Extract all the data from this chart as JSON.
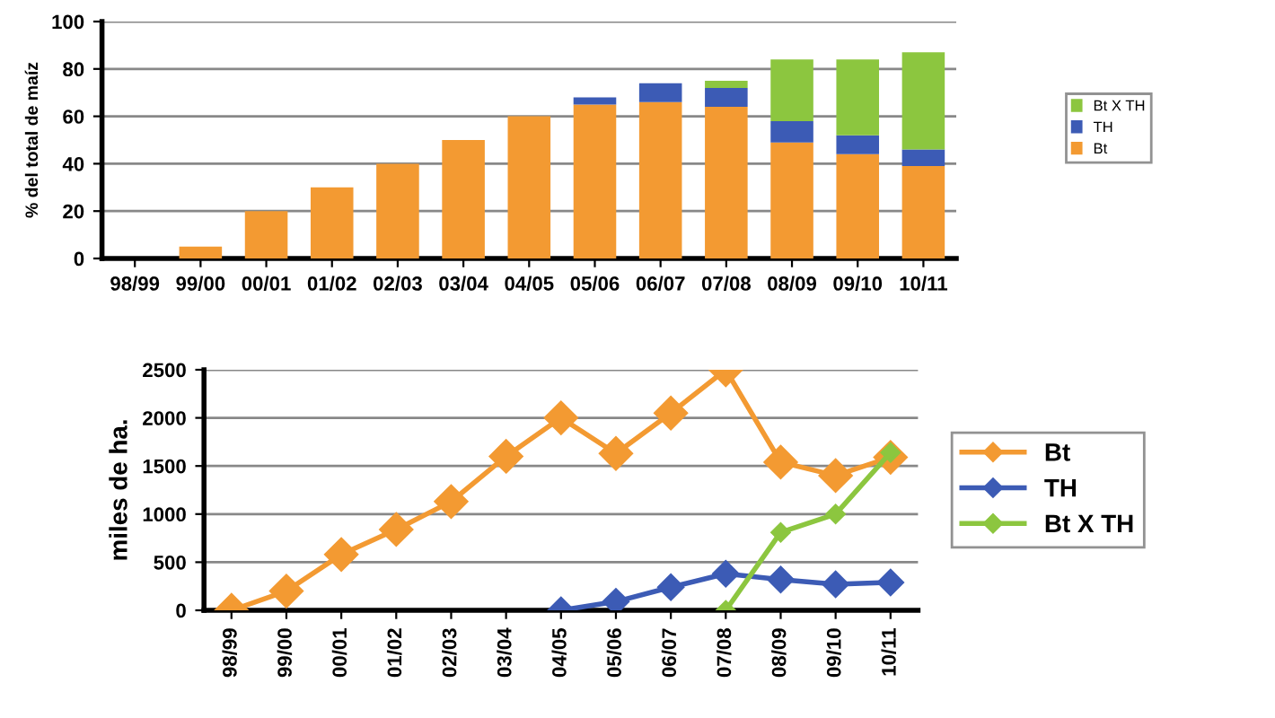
{
  "chart_data": [
    {
      "type": "bar",
      "stacked": true,
      "ylabel": "% del total de maíz",
      "categories": [
        "98/99",
        "99/00",
        "00/01",
        "01/02",
        "02/03",
        "03/04",
        "04/05",
        "05/06",
        "06/07",
        "07/08",
        "08/09",
        "09/10",
        "10/11"
      ],
      "series": [
        {
          "name": "Bt",
          "color": "#f39a32",
          "values": [
            0,
            5,
            20,
            30,
            40,
            50,
            60,
            65,
            66,
            64,
            49,
            44,
            39
          ]
        },
        {
          "name": "TH",
          "color": "#3c5bb5",
          "values": [
            0,
            0,
            0,
            0,
            0,
            0,
            0,
            3,
            8,
            8,
            9,
            8,
            7
          ]
        },
        {
          "name": "Bt X TH",
          "color": "#8cc63f",
          "values": [
            0,
            0,
            0,
            0,
            0,
            0,
            0,
            0,
            0,
            3,
            26,
            32,
            41
          ]
        }
      ],
      "ylim": [
        0,
        100
      ],
      "yticks": [
        0,
        20,
        40,
        60,
        80,
        100
      ],
      "grid": "y",
      "legend": "right"
    },
    {
      "type": "line",
      "ylabel": "miles de ha.",
      "marker": "diamond",
      "categories": [
        "98/99",
        "99/00",
        "00/01",
        "01/02",
        "02/03",
        "03/04",
        "04/05",
        "05/06",
        "06/07",
        "07/08",
        "08/09",
        "09/10",
        "10/11"
      ],
      "series": [
        {
          "name": "Bt",
          "color": "#f39a32",
          "values": [
            0,
            200,
            580,
            840,
            1130,
            1600,
            2000,
            1630,
            2050,
            2500,
            1540,
            1400,
            1590
          ]
        },
        {
          "name": "TH",
          "color": "#3c5bb5",
          "values": [
            null,
            null,
            null,
            null,
            null,
            null,
            0,
            90,
            240,
            380,
            320,
            270,
            290
          ]
        },
        {
          "name": "Bt X TH",
          "color": "#8cc63f",
          "values": [
            null,
            null,
            null,
            null,
            null,
            null,
            null,
            null,
            null,
            0,
            810,
            1000,
            1640
          ]
        }
      ],
      "ylim": [
        0,
        2500
      ],
      "yticks": [
        0,
        500,
        1000,
        1500,
        2000,
        2500
      ],
      "grid": "y",
      "legend": "right"
    }
  ]
}
